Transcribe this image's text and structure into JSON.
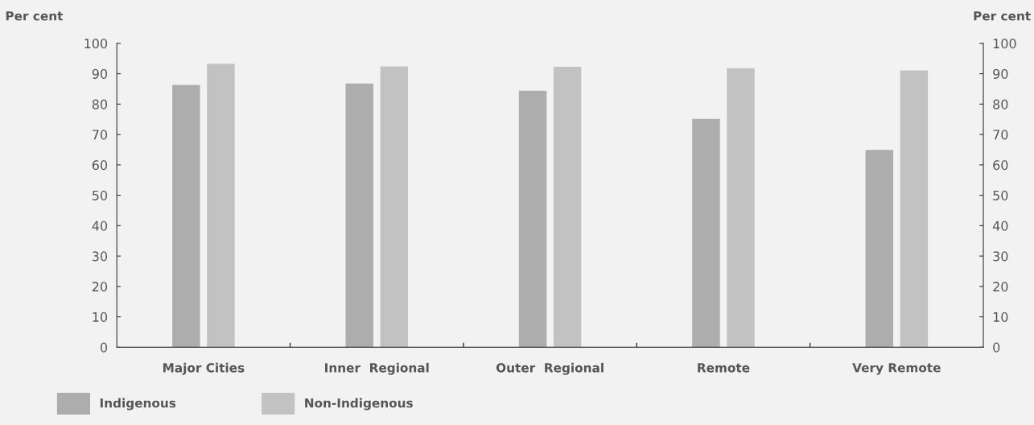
{
  "chart_data": {
    "type": "bar",
    "ylabel": "Per cent",
    "y2label": "Per cent",
    "categories": [
      "Major Cities",
      "Inner  Regional",
      "Outer  Regional",
      "Remote",
      "Very Remote"
    ],
    "series": [
      {
        "name": "Indigenous",
        "color": "#adadad",
        "values": [
          86.3,
          86.8,
          84.4,
          75.1,
          64.9
        ]
      },
      {
        "name": "Non-Indigenous",
        "color": "#c2c2c2",
        "values": [
          93.3,
          92.4,
          92.3,
          91.8,
          91.1
        ]
      }
    ],
    "ylim": [
      0,
      100
    ],
    "yticks": [
      0,
      10,
      20,
      30,
      40,
      50,
      60,
      70,
      80,
      90,
      100
    ],
    "y2lim": [
      0,
      100
    ],
    "y2ticks": [
      0,
      10,
      20,
      30,
      40,
      50,
      60,
      70,
      80,
      90,
      100
    ],
    "grid": false,
    "legend": "bottom left"
  }
}
